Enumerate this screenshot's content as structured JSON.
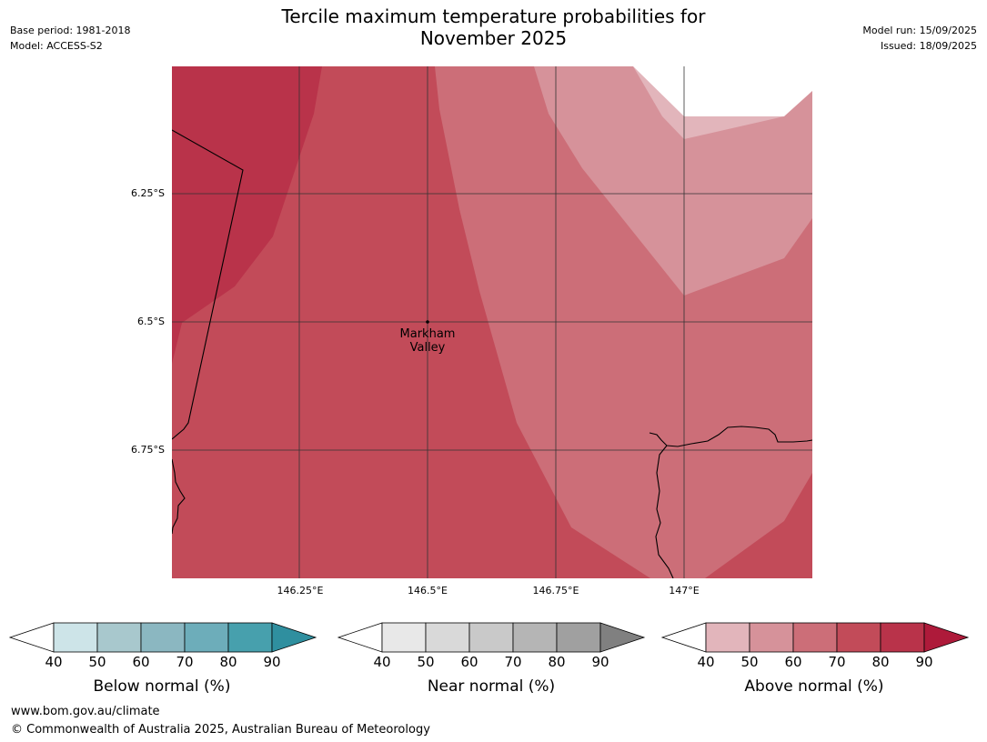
{
  "header": {
    "title_line1": "Tercile maximum temperature probabilities for",
    "title_line2": "November 2025",
    "base_period": "Base period: 1981-2018",
    "model": "Model: ACCESS-S2",
    "model_run": "Model run: 15/09/2025",
    "issued": "Issued: 18/09/2025"
  },
  "map": {
    "lat_labels": [
      "6.25°S",
      "6.5°S",
      "6.75°S"
    ],
    "lon_labels": [
      "146.25°E",
      "146.5°E",
      "146.75°E",
      "147°E"
    ],
    "place": {
      "name_line1": "Markham",
      "name_line2": "Valley"
    },
    "region_probabilities_above_normal": {
      "west": "80-90",
      "central": "70-80",
      "east": "60-70",
      "northeast": "50-60",
      "far_northeast": "40-50"
    }
  },
  "colorbars": [
    {
      "label": "Below normal (%)",
      "ticks": [
        "40",
        "50",
        "60",
        "70",
        "80",
        "90"
      ],
      "colors": [
        "#cde4e8",
        "#a8c8cd",
        "#8bb7c1",
        "#6dadba",
        "#47a0ad",
        "#2f8f9f"
      ]
    },
    {
      "label": "Near normal (%)",
      "ticks": [
        "40",
        "50",
        "60",
        "70",
        "80",
        "90"
      ],
      "colors": [
        "#e8e8e8",
        "#d9d9d9",
        "#c9c9c9",
        "#b5b5b5",
        "#a0a0a0",
        "#808080"
      ]
    },
    {
      "label": "Above normal (%)",
      "ticks": [
        "40",
        "50",
        "60",
        "70",
        "80",
        "90"
      ],
      "colors": [
        "#e2b5bb",
        "#d6929a",
        "#cc6e78",
        "#c24b59",
        "#b9334a",
        "#ae1a3a"
      ]
    }
  ],
  "footer": {
    "url": "www.bom.gov.au/climate",
    "copyright": "© Commonwealth of Australia 2025, Australian Bureau of Meteorology"
  }
}
